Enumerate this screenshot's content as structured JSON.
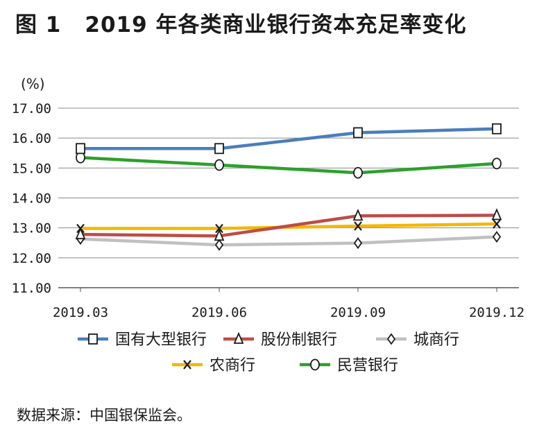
{
  "figure": {
    "number": "图 1",
    "title": "2019 年各类商业银行资本充足率变化",
    "source": "数据来源：中国银保监会。"
  },
  "chart_data": {
    "type": "line",
    "ylabel": "(%)",
    "ylim": [
      11,
      17
    ],
    "yticks": [
      "11.00",
      "12.00",
      "13.00",
      "14.00",
      "15.00",
      "16.00",
      "17.00"
    ],
    "categories": [
      "2019.03",
      "2019.06",
      "2019.09",
      "2019.12"
    ],
    "grid": "horizontal",
    "legend_position": "bottom",
    "series": [
      {
        "name": "国有大型银行",
        "values": [
          15.65,
          15.65,
          16.18,
          16.31
        ],
        "color": "#4a7ebb",
        "marker": "square"
      },
      {
        "name": "股份制银行",
        "values": [
          12.78,
          12.73,
          13.4,
          13.42
        ],
        "color": "#be4b48",
        "marker": "triangle"
      },
      {
        "name": "城商行",
        "values": [
          12.63,
          12.43,
          12.49,
          12.7
        ],
        "color": "#c0c0c0",
        "marker": "diamond"
      },
      {
        "name": "农商行",
        "values": [
          12.98,
          12.98,
          13.06,
          13.13
        ],
        "color": "#f2b700",
        "marker": "x"
      },
      {
        "name": "民营银行",
        "values": [
          15.35,
          15.1,
          14.84,
          15.15
        ],
        "color": "#2ca02c",
        "marker": "circle"
      }
    ]
  }
}
